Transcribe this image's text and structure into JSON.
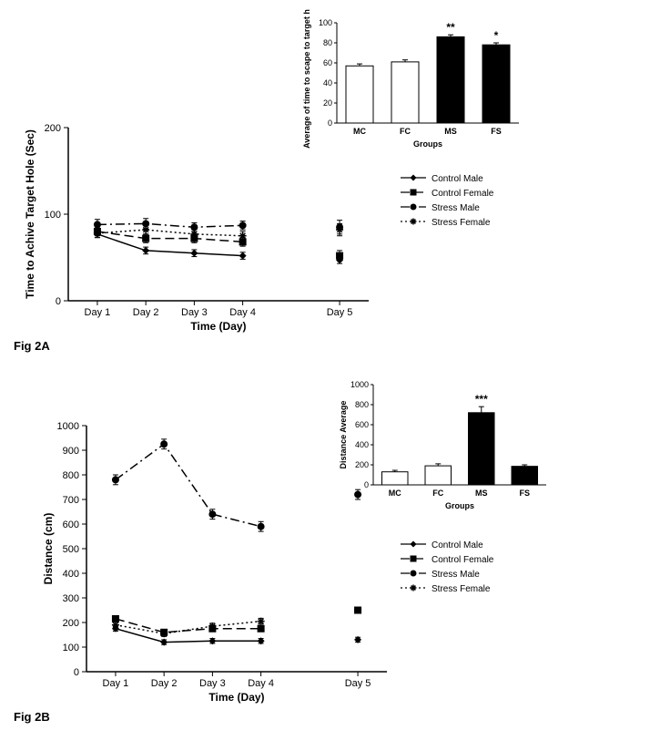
{
  "figA": {
    "label": "Fig 2A",
    "line_chart": {
      "type": "line",
      "xlabel": "Time (Day)",
      "ylabel": "Time to Achive Target Hole (Sec)",
      "label_fontsize": 12,
      "tick_fontsize": 11,
      "categories": [
        "Day 1",
        "Day 2",
        "Day 3",
        "Day 4",
        "Day 5"
      ],
      "ylim": [
        0,
        200
      ],
      "yticks": [
        0,
        100,
        200
      ],
      "x_gap_after_index": 3,
      "background_color": "#ffffff",
      "axis_color": "#000000",
      "series": [
        {
          "name": "Control Male",
          "marker": "diamond",
          "dash": "solid",
          "color": "#000000",
          "values": [
            77,
            58,
            55,
            52,
            47
          ],
          "err": [
            4,
            4,
            4,
            4,
            4
          ]
        },
        {
          "name": "Control Female",
          "marker": "square",
          "dash": "longdash",
          "color": "#000000",
          "values": [
            80,
            72,
            72,
            68,
            52
          ],
          "err": [
            5,
            5,
            5,
            5,
            6
          ]
        },
        {
          "name": "Stress Male",
          "marker": "circle",
          "dash": "dashdot",
          "color": "#000000",
          "values": [
            88,
            89,
            85,
            87,
            85
          ],
          "err": [
            6,
            6,
            5,
            5,
            8
          ]
        },
        {
          "name": "Stress Female",
          "marker": "star",
          "dash": "dot",
          "color": "#000000",
          "values": [
            78,
            82,
            77,
            75,
            82
          ],
          "err": [
            5,
            5,
            5,
            5,
            7
          ]
        }
      ]
    },
    "bar_chart": {
      "type": "bar",
      "xlabel": "Groups",
      "ylabel": "Average of time to scape to target hole",
      "label_fontsize": 9,
      "tick_fontsize": 9,
      "categories": [
        "MC",
        "FC",
        "MS",
        "FS"
      ],
      "values": [
        57,
        61,
        86,
        78
      ],
      "err": [
        2,
        2,
        2,
        2
      ],
      "fill_colors": [
        "#ffffff",
        "#ffffff",
        "#000000",
        "#000000"
      ],
      "stroke_color": "#000000",
      "ylim": [
        0,
        100
      ],
      "yticks": [
        0,
        20,
        40,
        60,
        80,
        100
      ],
      "annotations": [
        {
          "index": 2,
          "text": "**"
        },
        {
          "index": 3,
          "text": "*"
        }
      ],
      "background_color": "#ffffff"
    },
    "legend": {
      "items": [
        "Control Male",
        "Control Female",
        "Stress Male",
        "Stress Female"
      ],
      "fontsize": 10
    }
  },
  "figB": {
    "label": "Fig 2B",
    "line_chart": {
      "type": "line",
      "xlabel": "Time (Day)",
      "ylabel": "Distance (cm)",
      "label_fontsize": 12,
      "tick_fontsize": 11,
      "categories": [
        "Day 1",
        "Day 2",
        "Day 3",
        "Day 4",
        "Day 5"
      ],
      "ylim": [
        0,
        1000
      ],
      "yticks": [
        0,
        100,
        200,
        300,
        400,
        500,
        600,
        700,
        800,
        900,
        1000
      ],
      "x_gap_after_index": 3,
      "background_color": "#ffffff",
      "axis_color": "#000000",
      "series": [
        {
          "name": "Control Male",
          "marker": "diamond",
          "dash": "solid",
          "color": "#000000",
          "values": [
            175,
            120,
            125,
            125,
            130
          ],
          "err": [
            10,
            10,
            10,
            10,
            10
          ]
        },
        {
          "name": "Control Female",
          "marker": "square",
          "dash": "longdash",
          "color": "#000000",
          "values": [
            215,
            160,
            175,
            175,
            250
          ],
          "err": [
            12,
            12,
            12,
            12,
            12
          ]
        },
        {
          "name": "Stress Male",
          "marker": "circle",
          "dash": "dashdot",
          "color": "#000000",
          "values": [
            780,
            925,
            640,
            590,
            720
          ],
          "err": [
            20,
            20,
            20,
            20,
            20
          ]
        },
        {
          "name": "Stress Female",
          "marker": "star",
          "dash": "dot",
          "color": "#000000",
          "values": [
            190,
            155,
            185,
            205,
            250
          ],
          "err": [
            12,
            12,
            12,
            12,
            12
          ]
        }
      ]
    },
    "bar_chart": {
      "type": "bar",
      "xlabel": "Groups",
      "ylabel": "Distance Average",
      "label_fontsize": 9,
      "tick_fontsize": 9,
      "categories": [
        "MC",
        "FC",
        "MS",
        "FS"
      ],
      "values": [
        130,
        190,
        720,
        185
      ],
      "err": [
        15,
        20,
        60,
        15
      ],
      "fill_colors": [
        "#ffffff",
        "#ffffff",
        "#000000",
        "#000000"
      ],
      "stroke_color": "#000000",
      "ylim": [
        0,
        1000
      ],
      "yticks": [
        0,
        200,
        400,
        600,
        800,
        1000
      ],
      "annotations": [
        {
          "index": 2,
          "text": "***"
        }
      ],
      "background_color": "#ffffff"
    },
    "legend": {
      "items": [
        "Control Male",
        "Control Female",
        "Stress Male",
        "Stress Female"
      ],
      "fontsize": 10
    }
  }
}
